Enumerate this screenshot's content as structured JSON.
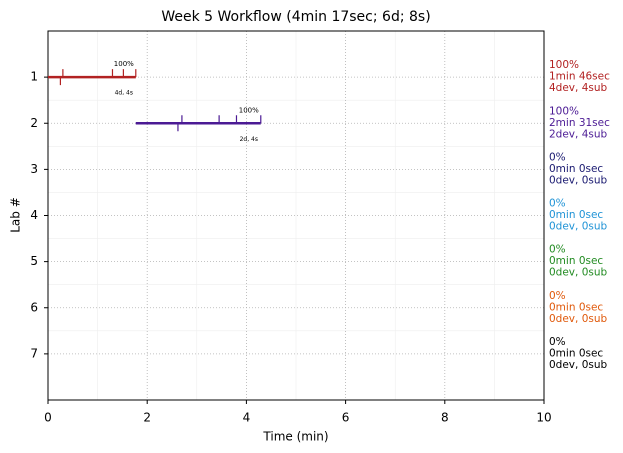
{
  "chart_data": {
    "type": "gantt",
    "title": "Week 5 Workflow (4min 17sec; 6d; 8s)",
    "xlabel": "Time (min)",
    "ylabel": "Lab #",
    "xlim": [
      0,
      10
    ],
    "xticks": [
      0,
      2,
      4,
      6,
      8,
      10
    ],
    "ylim": [
      8,
      0
    ],
    "yticks": [
      1,
      2,
      3,
      4,
      5,
      6,
      7
    ],
    "grid": true,
    "labs": [
      {
        "y": 1,
        "color": "#b22222",
        "start": 0,
        "end": 1.77,
        "sub_ticks": [
          0.3,
          1.3,
          1.52,
          1.77
        ],
        "dev_ticks": [
          0.25
        ],
        "bar_label": "100%",
        "count_label": "4d, 4s",
        "summary": [
          "100%",
          "1min 46sec",
          "4dev, 4sub"
        ]
      },
      {
        "y": 2,
        "color": "#4b1a94",
        "start": 1.77,
        "end": 4.29,
        "sub_ticks": [
          2.7,
          3.45,
          3.8,
          4.29
        ],
        "dev_ticks": [
          2.62
        ],
        "bar_label": "100%",
        "count_label": "2d, 4s",
        "summary": [
          "100%",
          "2min 31sec",
          "2dev, 4sub"
        ]
      },
      {
        "y": 3,
        "color": "#191970",
        "summary": [
          "0%",
          "0min 0sec",
          "0dev, 0sub"
        ]
      },
      {
        "y": 4,
        "color": "#1f93d6",
        "summary": [
          "0%",
          "0min 0sec",
          "0dev, 0sub"
        ]
      },
      {
        "y": 5,
        "color": "#228b22",
        "summary": [
          "0%",
          "0min 0sec",
          "0dev, 0sub"
        ]
      },
      {
        "y": 6,
        "color": "#e0590b",
        "summary": [
          "0%",
          "0min 0sec",
          "0dev, 0sub"
        ]
      },
      {
        "y": 7,
        "color": "#000000",
        "summary": [
          "0%",
          "0min 0sec",
          "0dev, 0sub"
        ]
      }
    ]
  }
}
